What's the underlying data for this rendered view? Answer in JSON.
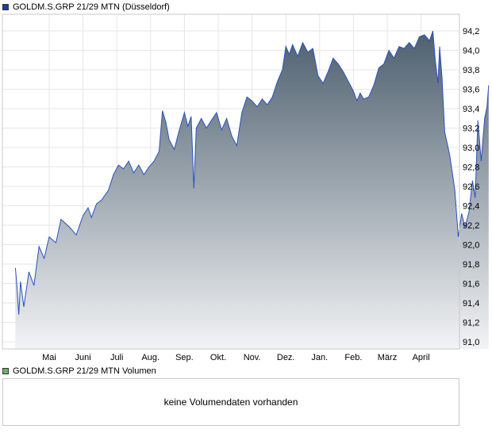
{
  "legend": {
    "price_label": "GOLDM.S.GRP 21/29 MTN (Düsseldorf)",
    "price_color": "#1f3f9a",
    "volume_label": "GOLDM.S.GRP 21/29 MTN Volumen",
    "volume_color": "#6bb36b"
  },
  "volume_panel": {
    "message": "keine Volumendaten vorhanden"
  },
  "chart_data": {
    "type": "area",
    "title": "GOLDM.S.GRP 21/29 MTN (Düsseldorf)",
    "xlabel": "",
    "ylabel": "",
    "ylim": [
      91.0,
      94.3
    ],
    "y_ticks": [
      "94,2",
      "94,0",
      "93,8",
      "93,6",
      "93,4",
      "93,2",
      "93,0",
      "92,8",
      "92,6",
      "92,4",
      "92,2",
      "92,0",
      "91,8",
      "91,6",
      "91,4",
      "91,2",
      "91,0"
    ],
    "x_ticks": [
      "Mai",
      "Juni",
      "Juli",
      "Aug.",
      "Sep.",
      "Okt.",
      "Nov.",
      "Dez.",
      "Jan.",
      "Feb.",
      "März",
      "April"
    ],
    "grid": true,
    "line_color": "#2a52be",
    "fill_top_color": "#4d5f6e",
    "fill_bottom_color": "#f2f3f5",
    "series": [
      {
        "name": "GOLDM.S.GRP 21/29 MTN (Düsseldorf)",
        "points": [
          [
            0.0,
            91.76
          ],
          [
            0.05,
            91.56
          ],
          [
            0.1,
            91.28
          ],
          [
            0.15,
            91.62
          ],
          [
            0.25,
            91.36
          ],
          [
            0.4,
            91.72
          ],
          [
            0.55,
            91.58
          ],
          [
            0.7,
            91.98
          ],
          [
            0.85,
            91.86
          ],
          [
            1.0,
            92.08
          ],
          [
            1.2,
            92.02
          ],
          [
            1.35,
            92.26
          ],
          [
            1.6,
            92.18
          ],
          [
            1.8,
            92.1
          ],
          [
            2.0,
            92.3
          ],
          [
            2.15,
            92.38
          ],
          [
            2.25,
            92.28
          ],
          [
            2.4,
            92.42
          ],
          [
            2.55,
            92.46
          ],
          [
            2.75,
            92.56
          ],
          [
            2.9,
            92.72
          ],
          [
            3.05,
            92.82
          ],
          [
            3.2,
            92.78
          ],
          [
            3.35,
            92.86
          ],
          [
            3.5,
            92.74
          ],
          [
            3.65,
            92.82
          ],
          [
            3.8,
            92.72
          ],
          [
            3.95,
            92.8
          ],
          [
            4.1,
            92.86
          ],
          [
            4.25,
            92.96
          ],
          [
            4.35,
            93.38
          ],
          [
            4.45,
            93.26
          ],
          [
            4.55,
            93.08
          ],
          [
            4.7,
            92.98
          ],
          [
            4.85,
            93.18
          ],
          [
            5.0,
            93.36
          ],
          [
            5.1,
            93.22
          ],
          [
            5.2,
            93.32
          ],
          [
            5.28,
            92.58
          ],
          [
            5.35,
            93.2
          ],
          [
            5.5,
            93.3
          ],
          [
            5.65,
            93.2
          ],
          [
            5.8,
            93.28
          ],
          [
            5.95,
            93.36
          ],
          [
            6.1,
            93.18
          ],
          [
            6.25,
            93.3
          ],
          [
            6.4,
            93.12
          ],
          [
            6.55,
            93.02
          ],
          [
            6.7,
            93.36
          ],
          [
            6.85,
            93.52
          ],
          [
            7.0,
            93.48
          ],
          [
            7.15,
            93.42
          ],
          [
            7.3,
            93.5
          ],
          [
            7.45,
            93.44
          ],
          [
            7.6,
            93.52
          ],
          [
            7.75,
            93.68
          ],
          [
            7.9,
            93.8
          ],
          [
            8.0,
            94.04
          ],
          [
            8.1,
            93.96
          ],
          [
            8.2,
            94.06
          ],
          [
            8.35,
            93.94
          ],
          [
            8.5,
            94.08
          ],
          [
            8.65,
            93.98
          ],
          [
            8.8,
            94.02
          ],
          [
            8.95,
            93.74
          ],
          [
            9.1,
            93.66
          ],
          [
            9.25,
            93.78
          ],
          [
            9.4,
            93.92
          ],
          [
            9.55,
            93.86
          ],
          [
            9.7,
            93.78
          ],
          [
            9.85,
            93.68
          ],
          [
            10.0,
            93.58
          ],
          [
            10.1,
            93.48
          ],
          [
            10.2,
            93.56
          ],
          [
            10.3,
            93.5
          ],
          [
            10.45,
            93.52
          ],
          [
            10.6,
            93.64
          ],
          [
            10.75,
            93.82
          ],
          [
            10.9,
            93.86
          ],
          [
            11.05,
            94.0
          ],
          [
            11.2,
            93.92
          ],
          [
            11.35,
            94.04
          ],
          [
            11.5,
            94.02
          ],
          [
            11.65,
            94.08
          ],
          [
            11.8,
            94.02
          ],
          [
            11.95,
            94.14
          ],
          [
            12.1,
            94.16
          ],
          [
            12.25,
            94.1
          ],
          [
            12.35,
            94.2
          ],
          [
            12.42,
            93.9
          ],
          [
            12.5,
            93.66
          ],
          [
            12.55,
            94.04
          ],
          [
            12.62,
            93.72
          ],
          [
            12.7,
            93.16
          ],
          [
            12.85,
            92.92
          ],
          [
            13.0,
            92.56
          ],
          [
            13.1,
            92.08
          ],
          [
            13.2,
            92.32
          ],
          [
            13.3,
            92.18
          ],
          [
            13.42,
            92.34
          ],
          [
            13.52,
            92.66
          ],
          [
            13.6,
            92.48
          ],
          [
            13.68,
            93.28
          ],
          [
            13.78,
            92.86
          ],
          [
            13.88,
            93.3
          ],
          [
            13.95,
            93.42
          ],
          [
            14.0,
            93.64
          ]
        ]
      }
    ]
  }
}
